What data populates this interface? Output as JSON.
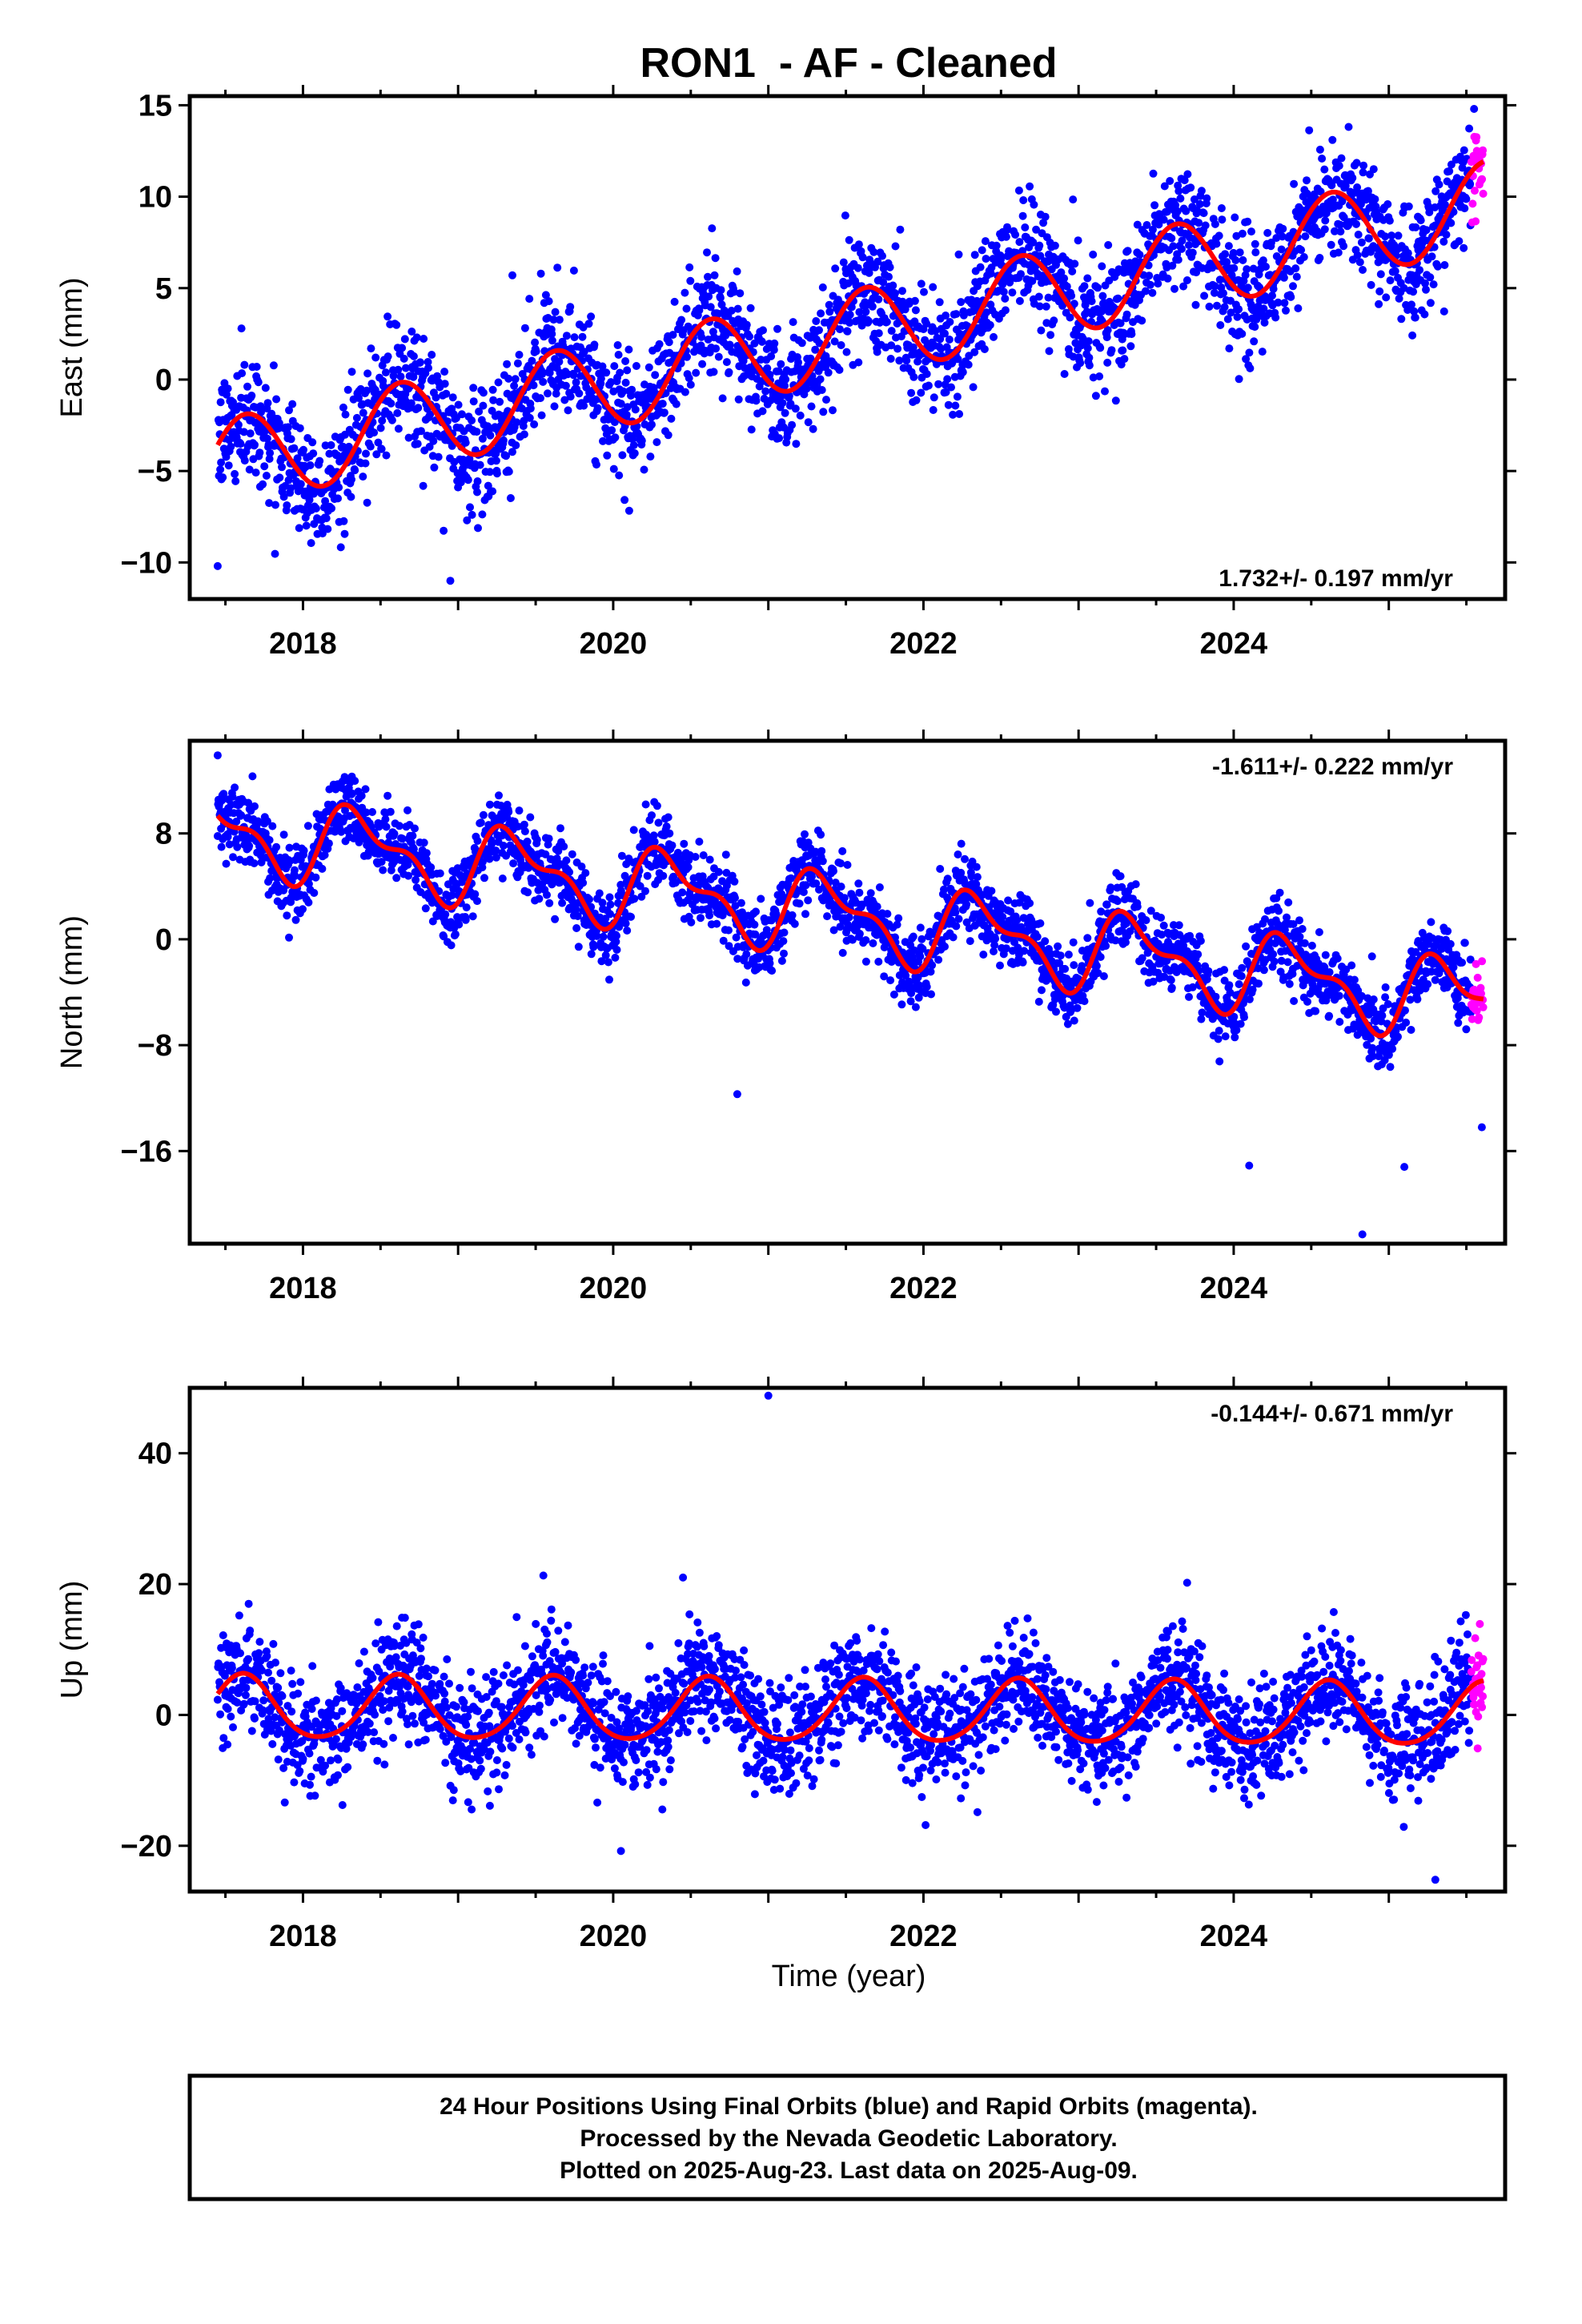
{
  "page": {
    "title": "RON1  - AF - Cleaned",
    "xlabel": "Time (year)",
    "footer": [
      "24 Hour Positions Using Final Orbits (blue) and Rapid Orbits (magenta).",
      "Processed by the Nevada Geodetic Laboratory.",
      "Plotted on 2025-Aug-23. Last data on 2025-Aug-09."
    ]
  },
  "colors": {
    "final": "#0000ff",
    "rapid": "#ff00ff",
    "model": "#ff0000",
    "frame": "#000000"
  },
  "chart_data": [
    {
      "type": "scatter",
      "ylabel": "East (mm)",
      "rate_label": "1.732+/- 0.197 mm/yr",
      "xlim": [
        2017.27,
        2025.75
      ],
      "ylim": [
        -12,
        15.5
      ],
      "xticks": [
        2018,
        2020,
        2022,
        2024
      ],
      "yticks": [
        -10,
        -5,
        0,
        5,
        10,
        15
      ],
      "model": {
        "offset": -4.6,
        "trend": 1.732,
        "t0": 2017.45,
        "annual_amp": 2.4,
        "phase": 0.38,
        "semi_amp": 0.0,
        "semi_phase": 0.0
      },
      "scatter_sd": 1.6,
      "data_start": 2017.45,
      "data_end": 2025.61,
      "rapid_start": 2025.53,
      "outliers": [
        [
          2019.35,
          5.7
        ],
        [
          2017.45,
          -10.2
        ],
        [
          2018.95,
          -11.0
        ],
        [
          2025.55,
          14.8
        ],
        [
          2021.85,
          8.2
        ]
      ]
    },
    {
      "type": "scatter",
      "ylabel": "North (mm)",
      "rate_label": "-1.611+/- 0.222 mm/yr",
      "xlim": [
        2017.27,
        2025.75
      ],
      "ylim": [
        -23,
        15
      ],
      "xticks": [
        2018,
        2020,
        2022,
        2024
      ],
      "yticks": [
        -16,
        -8,
        0,
        8
      ],
      "model": {
        "offset": 8.3,
        "trend": -1.611,
        "t0": 2017.45,
        "annual_amp": 2.6,
        "phase": 0.12,
        "semi_amp": 1.3,
        "semi_phase": 0.1
      },
      "scatter_sd": 1.4,
      "data_start": 2017.45,
      "data_end": 2025.61,
      "rapid_start": 2025.53,
      "outliers": [
        [
          2024.83,
          -22.3
        ],
        [
          2025.1,
          -17.2
        ],
        [
          2024.1,
          -17.1
        ],
        [
          2020.8,
          -11.7
        ],
        [
          2025.6,
          -14.2
        ],
        [
          2017.45,
          13.9
        ]
      ]
    },
    {
      "type": "scatter",
      "ylabel": "Up (mm)",
      "rate_label": "-0.144+/- 0.671 mm/yr",
      "xlim": [
        2017.27,
        2025.75
      ],
      "ylim": [
        -27,
        50
      ],
      "xticks": [
        2018,
        2020,
        2022,
        2024
      ],
      "yticks": [
        -20,
        0,
        20,
        40
      ],
      "model": {
        "offset": 1.0,
        "trend": -0.144,
        "t0": 2017.45,
        "annual_amp": 4.8,
        "phase": 0.36,
        "semi_amp": 0.6,
        "semi_phase": 0.0
      },
      "scatter_sd": 4.2,
      "data_start": 2017.45,
      "data_end": 2025.61,
      "rapid_start": 2025.53,
      "outliers": [
        [
          2021.0,
          48.8
        ],
        [
          2019.55,
          21.3
        ],
        [
          2020.45,
          21.0
        ],
        [
          2025.3,
          -25.2
        ],
        [
          2020.05,
          -20.8
        ],
        [
          2023.7,
          20.2
        ]
      ]
    }
  ]
}
